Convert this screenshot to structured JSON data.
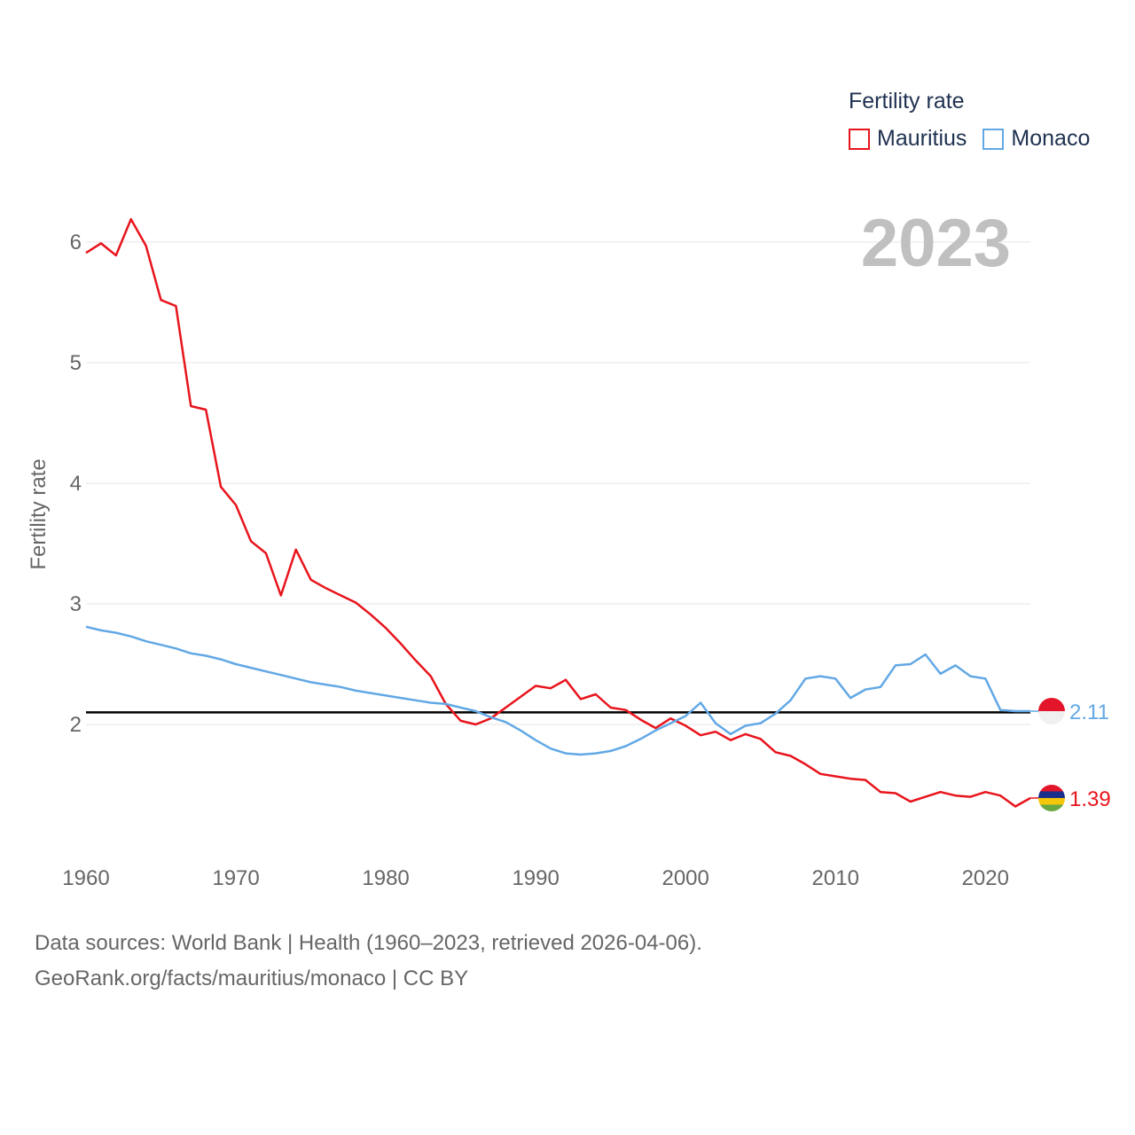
{
  "legend": {
    "title": "Fertility rate",
    "series": [
      {
        "name": "Mauritius",
        "color": "#e8141c"
      },
      {
        "name": "Monaco",
        "color": "#62a8e5"
      }
    ]
  },
  "footer": {
    "line1": "Data sources: World Bank | Health (1960–2023, retrieved 2026-04-06).",
    "line2": "GeoRank.org/facts/mauritius/monaco | CC BY"
  },
  "chart_data": {
    "type": "line",
    "year_label": "2023",
    "ylabel": "Fertility rate",
    "xlim": [
      1960,
      2023
    ],
    "ylim": [
      1.0,
      6.3
    ],
    "xticks": [
      1960,
      1970,
      1980,
      1990,
      2000,
      2010,
      2020
    ],
    "yticks": [
      2,
      3,
      4,
      5,
      6
    ],
    "reference_line": 2.1,
    "x": [
      1960,
      1961,
      1962,
      1963,
      1964,
      1965,
      1966,
      1967,
      1968,
      1969,
      1970,
      1971,
      1972,
      1973,
      1974,
      1975,
      1976,
      1977,
      1978,
      1979,
      1980,
      1981,
      1982,
      1983,
      1984,
      1985,
      1986,
      1987,
      1988,
      1989,
      1990,
      1991,
      1992,
      1993,
      1994,
      1995,
      1996,
      1997,
      1998,
      1999,
      2000,
      2001,
      2002,
      2003,
      2004,
      2005,
      2006,
      2007,
      2008,
      2009,
      2010,
      2011,
      2012,
      2013,
      2014,
      2015,
      2016,
      2017,
      2018,
      2019,
      2020,
      2021,
      2022,
      2023
    ],
    "series": [
      {
        "name": "Mauritius",
        "color": "#e8141c",
        "end_label": "1.39",
        "values": [
          5.91,
          5.99,
          5.89,
          6.19,
          5.97,
          5.52,
          5.47,
          4.64,
          4.61,
          3.97,
          3.82,
          3.52,
          3.42,
          3.07,
          3.45,
          3.2,
          3.13,
          3.07,
          3.01,
          2.91,
          2.8,
          2.67,
          2.53,
          2.4,
          2.17,
          2.03,
          2.0,
          2.05,
          2.14,
          2.23,
          2.32,
          2.3,
          2.37,
          2.21,
          2.25,
          2.14,
          2.12,
          2.04,
          1.97,
          2.05,
          1.99,
          1.91,
          1.94,
          1.87,
          1.92,
          1.88,
          1.77,
          1.74,
          1.67,
          1.59,
          1.57,
          1.55,
          1.54,
          1.44,
          1.43,
          1.36,
          1.4,
          1.44,
          1.41,
          1.4,
          1.44,
          1.41,
          1.32,
          1.39
        ]
      },
      {
        "name": "Monaco",
        "color": "#62a8e5",
        "end_label": "2.11",
        "values": [
          2.81,
          2.78,
          2.76,
          2.73,
          2.69,
          2.66,
          2.63,
          2.59,
          2.57,
          2.54,
          2.5,
          2.47,
          2.44,
          2.41,
          2.38,
          2.35,
          2.33,
          2.31,
          2.28,
          2.26,
          2.24,
          2.22,
          2.2,
          2.18,
          2.17,
          2.14,
          2.11,
          2.06,
          2.02,
          1.95,
          1.87,
          1.8,
          1.76,
          1.75,
          1.76,
          1.78,
          1.82,
          1.88,
          1.95,
          2.01,
          2.07,
          2.18,
          2.01,
          1.92,
          1.99,
          2.01,
          2.09,
          2.2,
          2.38,
          2.4,
          2.38,
          2.22,
          2.29,
          2.31,
          2.49,
          2.5,
          2.58,
          2.42,
          2.49,
          2.4,
          2.38,
          2.12,
          2.11,
          2.11
        ]
      }
    ]
  }
}
